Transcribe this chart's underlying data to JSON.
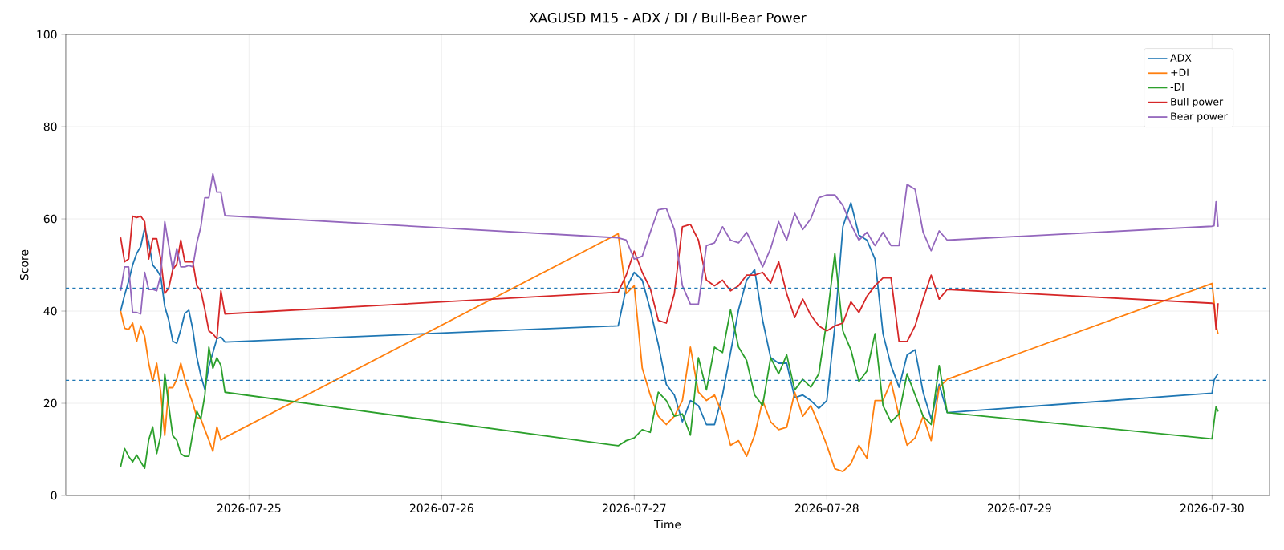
{
  "chart_data": {
    "type": "line",
    "title": "XAGUSD M15 - ADX / DI / Bull-Bear Power",
    "xlabel": "Time",
    "ylabel": "Score",
    "x": [
      "2026-07-24T08:00",
      "2026-07-24T08:30",
      "2026-07-24T09:00",
      "2026-07-24T09:30",
      "2026-07-24T10:00",
      "2026-07-24T10:30",
      "2026-07-24T11:00",
      "2026-07-24T11:30",
      "2026-07-24T12:00",
      "2026-07-24T12:30",
      "2026-07-24T13:00",
      "2026-07-24T13:30",
      "2026-07-24T14:00",
      "2026-07-24T14:30",
      "2026-07-24T15:00",
      "2026-07-24T15:30",
      "2026-07-24T16:00",
      "2026-07-24T16:30",
      "2026-07-24T17:00",
      "2026-07-24T17:30",
      "2026-07-24T18:00",
      "2026-07-24T18:30",
      "2026-07-24T19:00",
      "2026-07-24T19:30",
      "2026-07-24T20:00",
      "2026-07-24T20:30",
      "2026-07-24T21:00",
      "2026-07-26T22:00",
      "2026-07-26T23:00",
      "2026-07-27T00:00",
      "2026-07-27T01:00",
      "2026-07-27T02:00",
      "2026-07-27T03:00",
      "2026-07-27T04:00",
      "2026-07-27T05:00",
      "2026-07-27T06:00",
      "2026-07-27T07:00",
      "2026-07-27T08:00",
      "2026-07-27T09:00",
      "2026-07-27T10:00",
      "2026-07-27T11:00",
      "2026-07-27T12:00",
      "2026-07-27T13:00",
      "2026-07-27T14:00",
      "2026-07-27T15:00",
      "2026-07-27T16:00",
      "2026-07-27T17:00",
      "2026-07-27T18:00",
      "2026-07-27T19:00",
      "2026-07-27T20:00",
      "2026-07-27T21:00",
      "2026-07-27T22:00",
      "2026-07-27T23:00",
      "2026-07-28T00:00",
      "2026-07-28T01:00",
      "2026-07-28T02:00",
      "2026-07-28T03:00",
      "2026-07-28T04:00",
      "2026-07-28T05:00",
      "2026-07-28T06:00",
      "2026-07-28T07:00",
      "2026-07-28T08:00",
      "2026-07-28T09:00",
      "2026-07-28T10:00",
      "2026-07-28T11:00",
      "2026-07-28T12:00",
      "2026-07-28T13:00",
      "2026-07-28T14:00",
      "2026-07-28T15:00",
      "2026-07-30T00:00",
      "2026-07-30T00:15",
      "2026-07-30T00:30",
      "2026-07-30T00:45"
    ],
    "series": [
      {
        "name": "ADX",
        "color": "#1f77b4",
        "values": [
          40,
          43.5,
          46.5,
          50,
          52.5,
          54,
          58,
          55,
          50,
          49,
          47.5,
          41,
          38,
          33.5,
          33,
          36,
          39.5,
          40.2,
          36,
          30,
          26,
          23,
          28,
          31,
          34,
          34.4,
          33.3,
          36.8,
          45,
          48.4,
          46.7,
          40.3,
          32.8,
          24.1,
          21.8,
          16,
          20.6,
          19.5,
          15.4,
          15.4,
          21.8,
          31,
          40.3,
          46.7,
          49,
          38,
          29.9,
          28.7,
          28.7,
          21.2,
          21.8,
          20.6,
          18.9,
          20.6,
          36.8,
          58.3,
          63.5,
          56.5,
          55.4,
          51.3,
          35.1,
          28.2,
          23.5,
          30.5,
          31.6,
          22.4,
          16.6,
          24.1,
          18,
          22.2,
          25,
          25.8,
          26.4
        ]
      },
      {
        "name": "+DI",
        "color": "#ff7f0e",
        "values": [
          40,
          36.3,
          36,
          37.4,
          33.4,
          36.8,
          34.5,
          28.7,
          24.7,
          28.7,
          22.4,
          13,
          23.4,
          23.4,
          25.2,
          28.7,
          25.2,
          22.4,
          20,
          17,
          16.6,
          14.3,
          12,
          9.6,
          14.9,
          12,
          12.6,
          56.8,
          43.8,
          45.5,
          27.6,
          21.8,
          17.2,
          15.4,
          17.2,
          20.6,
          32.2,
          22.4,
          20.6,
          21.8,
          17.7,
          10.9,
          11.9,
          8.5,
          13.1,
          20.6,
          16,
          14.3,
          14.8,
          22.4,
          17.2,
          19.5,
          15.4,
          10.9,
          5.8,
          5.2,
          6.9,
          10.9,
          8.1,
          20.6,
          20.6,
          24.7,
          17.2,
          10.9,
          12.5,
          17.2,
          11.9,
          23.5,
          25.2,
          46,
          42,
          37,
          35
        ]
      },
      {
        "name": "-DI",
        "color": "#2ca02c",
        "values": [
          6.2,
          10.2,
          8.5,
          7.3,
          8.8,
          7.3,
          5.9,
          12,
          14.9,
          9.1,
          13,
          26.4,
          19.5,
          13,
          12,
          9.1,
          8.5,
          8.5,
          13.6,
          18.3,
          16.6,
          21.8,
          32.2,
          27.6,
          29.9,
          28.2,
          22.4,
          10.8,
          11.9,
          12.5,
          14.3,
          13.7,
          22.4,
          20.6,
          17.2,
          17.7,
          13.1,
          29.9,
          22.9,
          32.2,
          31,
          40.3,
          32.2,
          29.3,
          21.8,
          19.5,
          29.9,
          26.4,
          30.5,
          22.9,
          25.2,
          23.5,
          26.4,
          38,
          52.5,
          35.7,
          31.6,
          24.7,
          27,
          35.1,
          19.5,
          16,
          17.7,
          26.4,
          21.8,
          17.2,
          15.4,
          28.2,
          18,
          12.3,
          16,
          19.3,
          18.2
        ]
      },
      {
        "name": "Bull power",
        "color": "#d62728",
        "values": [
          56,
          50.7,
          51.3,
          60.6,
          60.3,
          60.6,
          59.4,
          51.3,
          55.7,
          55.7,
          51.3,
          43.8,
          45,
          49,
          50.2,
          55.4,
          50.7,
          50.7,
          50.7,
          45.5,
          44.4,
          40.3,
          35.7,
          35.1,
          34,
          44.4,
          39.4,
          44.1,
          47.8,
          53,
          48.4,
          44.9,
          38,
          37.4,
          43.8,
          58.3,
          58.8,
          55.4,
          46.7,
          45.5,
          46.7,
          44.4,
          45.5,
          47.8,
          47.8,
          48.4,
          46.1,
          50.7,
          43.8,
          38.6,
          42.6,
          39.1,
          36.8,
          35.7,
          36.8,
          37.4,
          42,
          39.7,
          43.2,
          45.5,
          47.2,
          47.2,
          33.4,
          33.4,
          36.8,
          42.6,
          47.8,
          42.6,
          44.7,
          41.7,
          41.5,
          36,
          41.7
        ]
      },
      {
        "name": "Bear power",
        "color": "#9467bd",
        "values": [
          44.4,
          49.6,
          49.6,
          39.7,
          39.7,
          39.4,
          48.4,
          44.7,
          44.7,
          44.4,
          47.8,
          59.4,
          54.2,
          49,
          53.6,
          49.6,
          49.6,
          49.9,
          49.6,
          54.8,
          58.3,
          64.6,
          64.6,
          69.8,
          65.8,
          65.8,
          60.7,
          55.9,
          55.4,
          51.3,
          51.9,
          57.1,
          62,
          62.3,
          57.7,
          45.5,
          41.5,
          41.5,
          54.2,
          54.8,
          58.3,
          55.4,
          54.8,
          57.1,
          53.6,
          49.6,
          53.6,
          59.4,
          55.4,
          61.2,
          57.7,
          60,
          64.6,
          65.2,
          65.2,
          62.9,
          58.8,
          55.4,
          57.1,
          54.2,
          57.1,
          54.2,
          54.2,
          67.5,
          66.4,
          57.1,
          53.1,
          57.4,
          55.4,
          58.4,
          58.5,
          63.7,
          58.3
        ]
      }
    ],
    "xlim": [
      "2026-07-24T01:10",
      "2026-07-30T07:10"
    ],
    "ylim": [
      0,
      100
    ],
    "xticks": [
      "2026-07-25",
      "2026-07-26",
      "2026-07-27",
      "2026-07-28",
      "2026-07-29",
      "2026-07-30"
    ],
    "yticks": [
      0,
      20,
      40,
      60,
      80,
      100
    ],
    "ref_lines": [
      {
        "axis": "y",
        "value": 45,
        "color": "#1f77b4",
        "line_style": "dashed"
      },
      {
        "axis": "y",
        "value": 25,
        "color": "#1f77b4",
        "line_style": "dashed"
      }
    ],
    "grid": true,
    "legend": "top right"
  }
}
